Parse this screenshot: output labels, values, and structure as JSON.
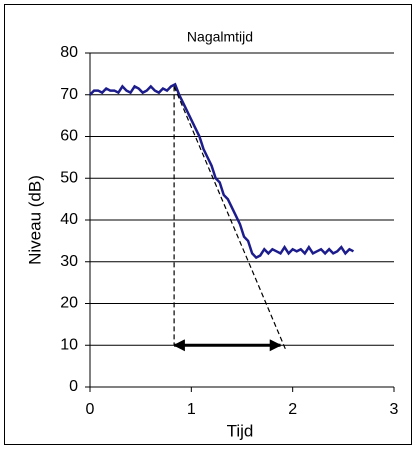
{
  "chart_data": {
    "type": "line",
    "title": "Nagalmtijd",
    "x_label": "Tijd",
    "y_label": "Niveau (dB)",
    "xlim": [
      0,
      3
    ],
    "ylim": [
      0,
      80
    ],
    "xticks": [
      0,
      1,
      2,
      3
    ],
    "yticks": [
      0,
      10,
      20,
      30,
      40,
      50,
      60,
      70,
      80
    ],
    "grid": true,
    "series": [
      {
        "color": "#1c1c8c",
        "x": [
          0,
          0.04,
          0.08,
          0.12,
          0.16,
          0.2,
          0.24,
          0.28,
          0.32,
          0.36,
          0.4,
          0.44,
          0.48,
          0.52,
          0.56,
          0.6,
          0.64,
          0.68,
          0.72,
          0.76,
          0.8,
          0.84,
          0.88,
          0.92,
          0.96,
          1.0,
          1.04,
          1.08,
          1.12,
          1.16,
          1.2,
          1.24,
          1.28,
          1.32,
          1.36,
          1.4,
          1.44,
          1.48,
          1.52,
          1.56,
          1.6,
          1.64,
          1.68,
          1.72,
          1.76,
          1.8,
          1.84,
          1.88,
          1.92,
          1.96,
          2.0,
          2.04,
          2.08,
          2.12,
          2.16,
          2.2,
          2.24,
          2.28,
          2.32,
          2.36,
          2.4,
          2.44,
          2.48,
          2.52,
          2.56,
          2.6
        ],
        "values": [
          70,
          71,
          71,
          70.5,
          71.5,
          71,
          71,
          70.5,
          72,
          71,
          70.5,
          72,
          71.5,
          70.5,
          71,
          72,
          71,
          70.5,
          71.5,
          71,
          72,
          72.5,
          70,
          68,
          66,
          64,
          62,
          60,
          57,
          55,
          53,
          50,
          49,
          46,
          45,
          43,
          41,
          39,
          36,
          35,
          32,
          31,
          31.5,
          33,
          32,
          33,
          32.5,
          32,
          33.5,
          32,
          33,
          32.5,
          33,
          32,
          33.5,
          32,
          32.5,
          33,
          32,
          33,
          32,
          32.5,
          33.5,
          32,
          33,
          32.5
        ]
      },
      {
        "color": "#000000",
        "dash": true,
        "x": [
          0.83,
          0.83
        ],
        "values": [
          72,
          10
        ]
      },
      {
        "color": "#000000",
        "dash": true,
        "x": [
          0.83,
          1.93
        ],
        "values": [
          72,
          9
        ]
      },
      {
        "color": "#000000",
        "arrow": "both",
        "x": [
          0.83,
          1.88
        ],
        "values": [
          10,
          10
        ]
      }
    ]
  }
}
